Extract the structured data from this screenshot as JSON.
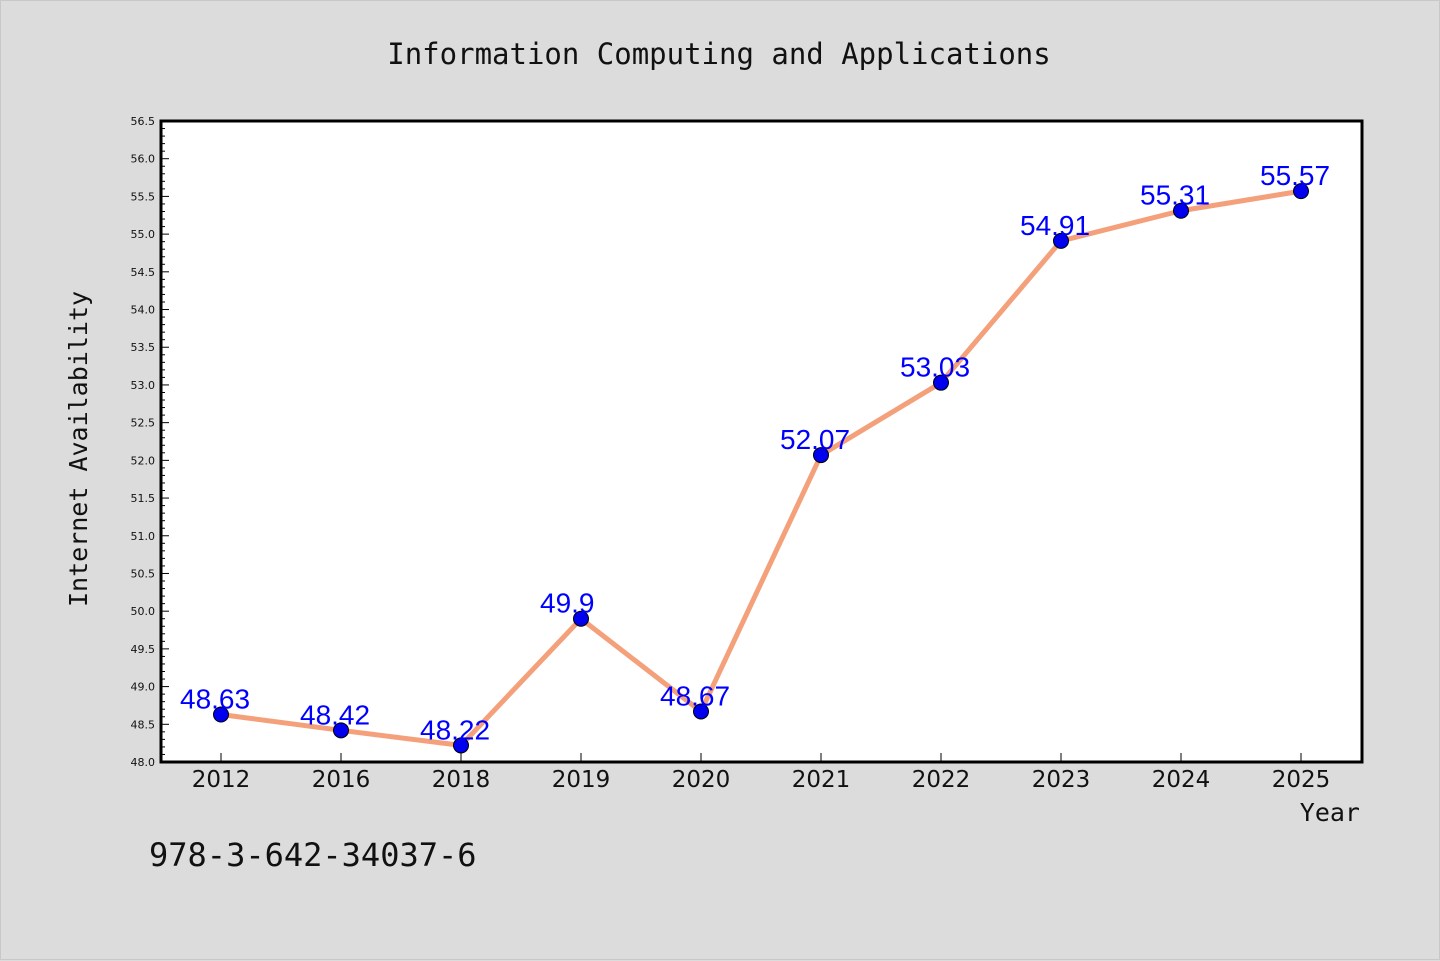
{
  "colors": {
    "background": "#dcdcdc",
    "plot_background": "#ffffff",
    "line": "#f4a07a",
    "marker": "#0000ee",
    "data_label": "#0000ff"
  },
  "footer": {
    "text": "978-3-642-34037-6"
  },
  "chart_data": {
    "type": "line",
    "title": "Information Computing and Applications",
    "xlabel": "Year",
    "ylabel": "Internet Availability",
    "categories": [
      "2012",
      "2016",
      "2018",
      "2019",
      "2020",
      "2021",
      "2022",
      "2023",
      "2024",
      "2025"
    ],
    "series": [
      {
        "values": [
          48.63,
          48.42,
          48.22,
          49.9,
          48.67,
          52.07,
          53.03,
          54.91,
          55.31,
          55.57
        ],
        "labels": [
          "48.63",
          "48.42",
          "48.22",
          "49.9",
          "48.67",
          "52.07",
          "53.03",
          "54.91",
          "55.31",
          "55.57"
        ]
      }
    ],
    "ylim": [
      48.0,
      56.5
    ],
    "yticks": [
      "48.0",
      "48.5",
      "49.0",
      "49.5",
      "50.0",
      "50.5",
      "51.0",
      "51.5",
      "52.0",
      "52.5",
      "53.0",
      "53.5",
      "54.0",
      "54.5",
      "55.0",
      "55.5",
      "56.0",
      "56.5"
    ],
    "grid": false,
    "legend": "none"
  }
}
